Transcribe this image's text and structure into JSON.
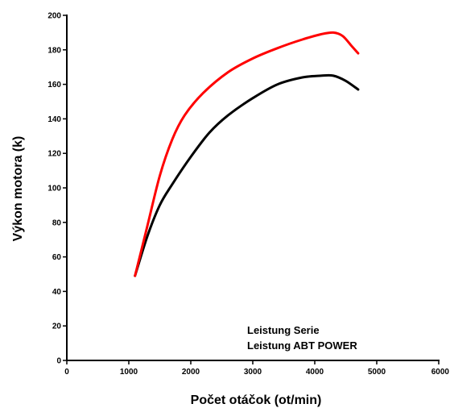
{
  "chart_data": {
    "type": "line",
    "xlabel": "Počet otáčok (ot/min)",
    "ylabel": "Výkon motora (k)",
    "xlim": [
      0,
      6000
    ],
    "ylim": [
      0,
      200
    ],
    "x_ticks": [
      "0",
      "1000",
      "2000",
      "3000",
      "4000",
      "5000",
      "6000"
    ],
    "y_ticks": [
      "0",
      "20",
      "40",
      "60",
      "80",
      "100",
      "120",
      "140",
      "160",
      "180",
      "200"
    ],
    "grid": false,
    "legend_placement": "bottom-right",
    "series": [
      {
        "name": "Leistung Serie",
        "color": "#000000",
        "x": [
          1100,
          1300,
          1500,
          1700,
          2000,
          2300,
          2600,
          3000,
          3400,
          3800,
          4100,
          4300,
          4500,
          4700
        ],
        "y": [
          49,
          72,
          90,
          102,
          118,
          132,
          142,
          152,
          160,
          164,
          165,
          165,
          162,
          157
        ]
      },
      {
        "name": "Leistung ABT POWER",
        "color": "#ff0000",
        "x": [
          1100,
          1300,
          1500,
          1700,
          1900,
          2200,
          2600,
          3000,
          3400,
          3800,
          4100,
          4300,
          4450,
          4600,
          4700
        ],
        "y": [
          49,
          78,
          107,
          128,
          142,
          155,
          167,
          175,
          181,
          186,
          189,
          190,
          188,
          182,
          178
        ]
      }
    ]
  }
}
